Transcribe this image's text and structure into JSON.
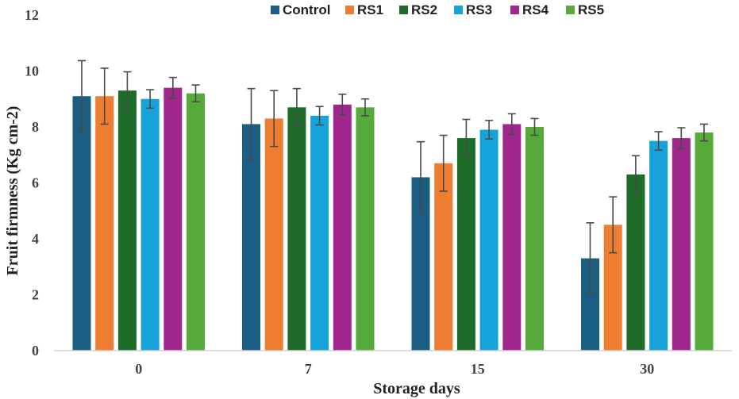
{
  "chart_data": {
    "type": "bar",
    "title": "",
    "xlabel": "Storage days",
    "ylabel": "Fruit firmness (Kg cm-2)",
    "ylim": [
      0,
      12
    ],
    "yticks": [
      0,
      2,
      4,
      6,
      8,
      10,
      12
    ],
    "grid": false,
    "legend_position": "top",
    "categories": [
      "0",
      "7",
      "15",
      "30"
    ],
    "series": [
      {
        "name": "Control",
        "color": "#1b5e83",
        "values": [
          9.1,
          8.1,
          6.2,
          3.3
        ],
        "errors": [
          1.27,
          1.27,
          1.27,
          1.27
        ]
      },
      {
        "name": "RS1",
        "color": "#ee7d31",
        "values": [
          9.1,
          8.3,
          6.7,
          4.5
        ],
        "errors": [
          1.0,
          1.0,
          1.0,
          1.0
        ]
      },
      {
        "name": "RS2",
        "color": "#1e6c2a",
        "values": [
          9.3,
          8.7,
          7.6,
          6.3
        ],
        "errors": [
          0.67,
          0.67,
          0.67,
          0.67
        ]
      },
      {
        "name": "RS3",
        "color": "#16a3da",
        "values": [
          9.0,
          8.4,
          7.9,
          7.5
        ],
        "errors": [
          0.33,
          0.33,
          0.33,
          0.33
        ]
      },
      {
        "name": "RS4",
        "color": "#a0268e",
        "values": [
          9.4,
          8.8,
          8.1,
          7.6
        ],
        "errors": [
          0.37,
          0.37,
          0.37,
          0.37
        ]
      },
      {
        "name": "RS5",
        "color": "#55aa3a",
        "values": [
          9.2,
          8.7,
          8.0,
          7.8
        ],
        "errors": [
          0.3,
          0.3,
          0.3,
          0.3
        ]
      }
    ]
  }
}
